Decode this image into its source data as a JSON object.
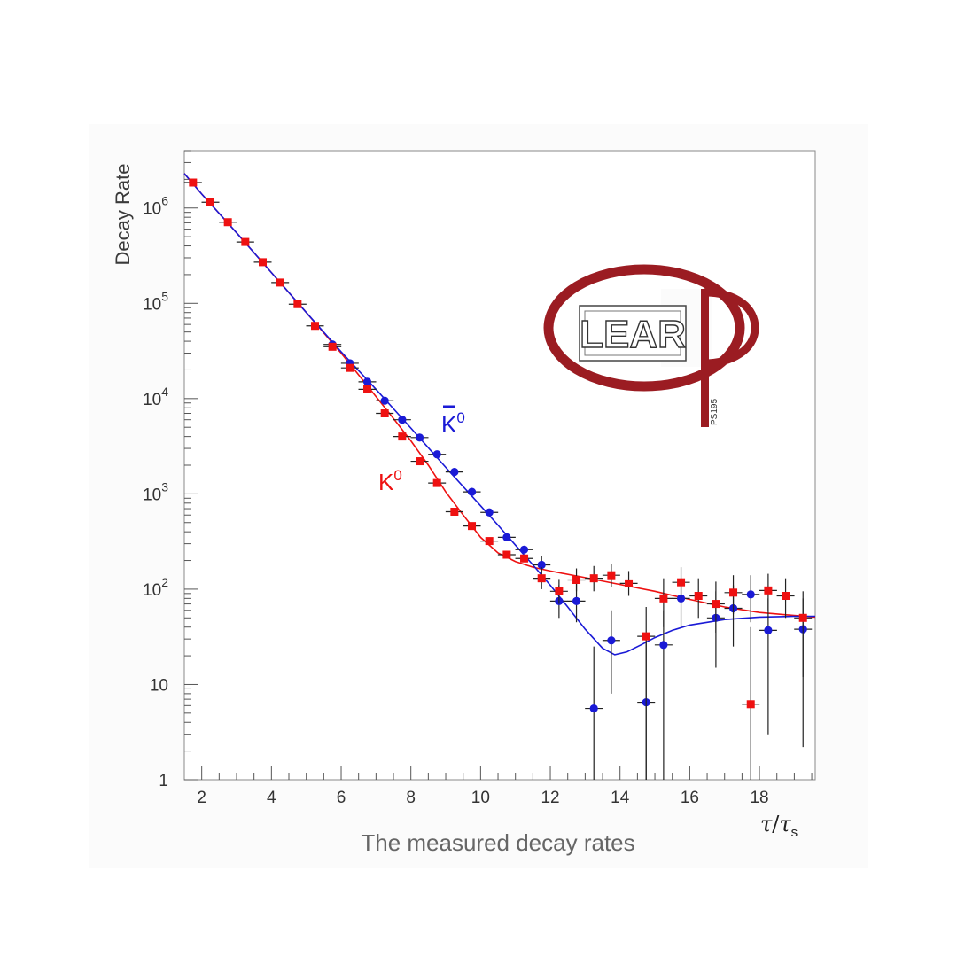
{
  "chart_data": {
    "type": "scatter",
    "title": "The measured decay rates",
    "ylabel": "Decay Rate",
    "xlabel": "τ / τs",
    "x_range": [
      1.5,
      19.6
    ],
    "y_range": [
      1,
      4000000
    ],
    "y_scale": "log",
    "x_ticks": [
      "2",
      "4",
      "6",
      "8",
      "10",
      "12",
      "14",
      "16",
      "18"
    ],
    "y_ticks": [
      {
        "value": 1,
        "base": "1",
        "exp": ""
      },
      {
        "value": 10,
        "base": "10",
        "exp": ""
      },
      {
        "value": 100,
        "base": "10",
        "exp": "2"
      },
      {
        "value": 1000,
        "base": "10",
        "exp": "3"
      },
      {
        "value": 10000,
        "base": "10",
        "exp": "4"
      },
      {
        "value": 100000,
        "base": "10",
        "exp": "5"
      },
      {
        "value": 1000000,
        "base": "10",
        "exp": "6"
      }
    ],
    "grid": false,
    "series": [
      {
        "name": "K⁰",
        "color": "#ee1111",
        "marker": "square",
        "points": [
          [
            1.75,
            1850000,
            null,
            null
          ],
          [
            2.25,
            1150000,
            null,
            null
          ],
          [
            2.75,
            710000,
            null,
            null
          ],
          [
            3.25,
            440000,
            null,
            null
          ],
          [
            3.75,
            270000,
            null,
            null
          ],
          [
            4.25,
            165000,
            null,
            null
          ],
          [
            4.75,
            98000,
            null,
            null
          ],
          [
            5.25,
            58000,
            null,
            null
          ],
          [
            5.75,
            35000,
            null,
            null
          ],
          [
            6.25,
            21000,
            null,
            null
          ],
          [
            6.75,
            12500,
            null,
            null
          ],
          [
            7.25,
            7000,
            null,
            null
          ],
          [
            7.75,
            4000,
            null,
            null
          ],
          [
            8.25,
            2200,
            null,
            null
          ],
          [
            8.75,
            1300,
            null,
            null
          ],
          [
            9.25,
            650,
            null,
            null
          ],
          [
            9.75,
            460,
            null,
            null
          ],
          [
            10.25,
            320,
            null,
            null
          ],
          [
            10.75,
            230,
            null,
            null
          ],
          [
            11.25,
            210,
            null,
            null
          ],
          [
            11.75,
            130,
            100,
            170
          ],
          [
            12.25,
            95,
            70,
            128
          ],
          [
            12.75,
            125,
            95,
            165
          ],
          [
            13.25,
            130,
            95,
            175
          ],
          [
            13.75,
            140,
            105,
            185
          ],
          [
            14.25,
            115,
            85,
            155
          ],
          [
            14.75,
            32,
            1,
            65
          ],
          [
            15.25,
            80,
            40,
            130
          ],
          [
            15.75,
            118,
            80,
            170
          ],
          [
            16.25,
            85,
            50,
            130
          ],
          [
            16.75,
            70,
            35,
            120
          ],
          [
            17.25,
            92,
            55,
            140
          ],
          [
            17.75,
            6.2,
            1,
            40
          ],
          [
            18.25,
            97,
            60,
            145
          ],
          [
            18.75,
            85,
            50,
            130
          ],
          [
            19.25,
            50,
            12,
            95
          ]
        ],
        "fit": [
          [
            1.5,
            2300000
          ],
          [
            2,
            1400000
          ],
          [
            3,
            550000
          ],
          [
            4,
            210000
          ],
          [
            5,
            80000
          ],
          [
            6,
            30000
          ],
          [
            7,
            10500
          ],
          [
            7.5,
            6200
          ],
          [
            8,
            3600
          ],
          [
            8.5,
            2000
          ],
          [
            9,
            1050
          ],
          [
            9.5,
            600
          ],
          [
            10,
            350
          ],
          [
            10.5,
            240
          ],
          [
            11,
            195
          ],
          [
            11.5,
            170
          ],
          [
            12,
            155
          ],
          [
            13,
            132
          ],
          [
            14,
            112
          ],
          [
            15,
            95
          ],
          [
            16,
            78
          ],
          [
            17,
            65
          ],
          [
            18,
            57
          ],
          [
            19,
            53
          ],
          [
            19.6,
            51
          ]
        ]
      },
      {
        "name": "K̄⁰",
        "color": "#1a1ad6",
        "marker": "circle",
        "points": [
          [
            5.75,
            37000,
            null,
            null
          ],
          [
            6.25,
            23500,
            null,
            null
          ],
          [
            6.75,
            15000,
            null,
            null
          ],
          [
            7.25,
            9500,
            null,
            null
          ],
          [
            7.75,
            6000,
            null,
            null
          ],
          [
            8.25,
            3900,
            null,
            null
          ],
          [
            8.75,
            2600,
            null,
            null
          ],
          [
            9.25,
            1700,
            null,
            null
          ],
          [
            9.75,
            1050,
            null,
            null
          ],
          [
            10.25,
            640,
            null,
            null
          ],
          [
            10.75,
            350,
            null,
            null
          ],
          [
            11.25,
            260,
            null,
            null
          ],
          [
            11.75,
            180,
            140,
            225
          ],
          [
            12.25,
            75,
            50,
            110
          ],
          [
            12.75,
            75,
            45,
            115
          ],
          [
            13.25,
            5.6,
            1,
            25
          ],
          [
            13.75,
            29,
            8,
            60
          ],
          [
            14.75,
            6.5,
            1,
            35
          ],
          [
            15.25,
            26,
            1,
            60
          ],
          [
            15.75,
            80,
            40,
            130
          ],
          [
            16.75,
            50,
            15,
            95
          ],
          [
            17.25,
            63,
            25,
            110
          ],
          [
            17.75,
            88,
            45,
            140
          ],
          [
            18.25,
            37,
            3,
            80
          ],
          [
            19.25,
            38,
            2.2,
            80
          ]
        ],
        "fit": [
          [
            1.5,
            2300000
          ],
          [
            2,
            1400000
          ],
          [
            3,
            550000
          ],
          [
            4,
            210000
          ],
          [
            5,
            80000
          ],
          [
            6,
            31000
          ],
          [
            7,
            12500
          ],
          [
            8,
            4900
          ],
          [
            9,
            1900
          ],
          [
            10,
            750
          ],
          [
            10.5,
            470
          ],
          [
            11,
            290
          ],
          [
            11.5,
            180
          ],
          [
            12,
            110
          ],
          [
            12.5,
            65
          ],
          [
            13,
            38
          ],
          [
            13.5,
            24
          ],
          [
            13.85,
            20.5
          ],
          [
            14.2,
            22
          ],
          [
            14.6,
            26
          ],
          [
            15,
            31
          ],
          [
            15.5,
            37
          ],
          [
            16,
            42
          ],
          [
            17,
            48
          ],
          [
            18,
            51
          ],
          [
            19,
            52
          ],
          [
            19.6,
            52
          ]
        ]
      }
    ],
    "logo_text": "LEAR",
    "logo_code": "PS195",
    "logo_color": "#9b1c22"
  }
}
